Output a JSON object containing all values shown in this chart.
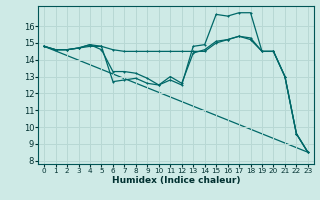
{
  "background_color": "#ceeae6",
  "grid_color": "#b8d8d4",
  "line_color": "#006868",
  "xlabel": "Humidex (Indice chaleur)",
  "xlim": [
    -0.5,
    23.5
  ],
  "ylim": [
    7.8,
    17.2
  ],
  "yticks": [
    8,
    9,
    10,
    11,
    12,
    13,
    14,
    15,
    16
  ],
  "xticks": [
    0,
    1,
    2,
    3,
    4,
    5,
    6,
    7,
    8,
    9,
    10,
    11,
    12,
    13,
    14,
    15,
    16,
    17,
    18,
    19,
    20,
    21,
    22,
    23
  ],
  "series_diagonal": {
    "x": [
      0,
      23
    ],
    "y": [
      14.8,
      8.5
    ]
  },
  "series_flat": {
    "x": [
      0,
      1,
      2,
      3,
      4,
      5,
      6,
      7,
      8,
      9,
      10,
      11,
      12,
      13,
      14,
      15,
      16,
      17,
      18,
      19,
      20,
      21,
      22,
      23
    ],
    "y": [
      14.8,
      14.6,
      14.6,
      14.7,
      14.8,
      14.8,
      14.6,
      14.5,
      14.5,
      14.5,
      14.5,
      14.5,
      14.5,
      14.5,
      14.5,
      15.0,
      15.2,
      15.4,
      15.3,
      14.5,
      14.5,
      13.0,
      9.6,
      8.5
    ]
  },
  "series_high": {
    "x": [
      0,
      1,
      2,
      3,
      4,
      5,
      6,
      7,
      8,
      9,
      10,
      11,
      12,
      13,
      14,
      15,
      16,
      17,
      18,
      19,
      20,
      21,
      22,
      23
    ],
    "y": [
      14.8,
      14.6,
      14.6,
      14.7,
      14.9,
      14.8,
      12.7,
      12.8,
      12.9,
      12.6,
      12.5,
      12.8,
      12.5,
      14.8,
      14.9,
      16.7,
      16.6,
      16.8,
      16.8,
      14.5,
      14.5,
      13.0,
      9.6,
      8.5
    ]
  },
  "series_mid": {
    "x": [
      0,
      1,
      2,
      3,
      4,
      5,
      6,
      7,
      8,
      9,
      10,
      11,
      12,
      13,
      14,
      15,
      16,
      17,
      18,
      19,
      20,
      21,
      22,
      23
    ],
    "y": [
      14.8,
      14.6,
      14.6,
      14.7,
      14.9,
      14.6,
      13.3,
      13.3,
      13.2,
      12.9,
      12.5,
      13.0,
      12.6,
      14.4,
      14.6,
      15.1,
      15.2,
      15.4,
      15.2,
      14.5,
      14.5,
      13.0,
      9.6,
      8.5
    ]
  }
}
